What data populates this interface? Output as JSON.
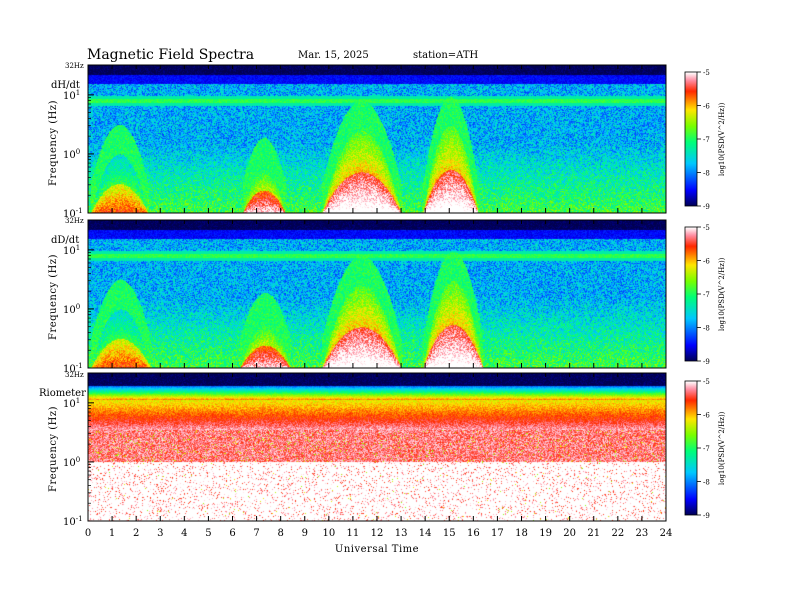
{
  "chart_data": {
    "type": "heatmap",
    "title": "Magnetic  Field  Spectra",
    "date": "Mar. 15, 2025",
    "station": "station=ATH",
    "xlabel": "Universal Time",
    "x_ticks": [
      "0",
      "1",
      "2",
      "3",
      "4",
      "5",
      "6",
      "7",
      "8",
      "9",
      "10",
      "11",
      "12",
      "13",
      "14",
      "15",
      "16",
      "17",
      "18",
      "19",
      "20",
      "21",
      "22",
      "23",
      "24"
    ],
    "xlim": [
      0,
      24
    ],
    "colorbar": {
      "range": [
        -9,
        -5
      ],
      "ticks": [
        "-5",
        "-6",
        "-7",
        "-8",
        "-9"
      ],
      "label": "log10(PSD(V^2/Hz))"
    },
    "panels": [
      {
        "label": "dH/dt",
        "ylabel": "Frequency  (Hz)",
        "top_label": "32Hz",
        "y_ticks": [
          "10^1",
          "10^0",
          "10^-1"
        ],
        "ylim": [
          0.1,
          32
        ],
        "y_scale": "log",
        "background_level": -7.8,
        "line_freq": 8.0,
        "events": [
          {
            "start": 0.1,
            "end": 2.5,
            "fmax": 1.0,
            "peak": -6.2
          },
          {
            "start": 6.4,
            "end": 8.2,
            "fmax": 0.6,
            "peak": -5.6
          },
          {
            "start": 9.7,
            "end": 13.0,
            "fmax": 2.5,
            "peak": -5.3
          },
          {
            "start": 13.9,
            "end": 16.2,
            "fmax": 3.0,
            "peak": -5.3
          }
        ]
      },
      {
        "label": "dD/dt",
        "ylabel": "Frequency  (Hz)",
        "top_label": "32Hz",
        "y_ticks": [
          "10^1",
          "10^0",
          "10^-1"
        ],
        "ylim": [
          0.1,
          32
        ],
        "y_scale": "log",
        "background_level": -7.8,
        "line_freq": 8.0,
        "events": [
          {
            "start": 0.1,
            "end": 2.6,
            "fmax": 1.0,
            "peak": -6.2
          },
          {
            "start": 6.3,
            "end": 8.4,
            "fmax": 0.6,
            "peak": -5.6
          },
          {
            "start": 9.7,
            "end": 13.0,
            "fmax": 2.5,
            "peak": -5.3
          },
          {
            "start": 13.9,
            "end": 16.4,
            "fmax": 3.0,
            "peak": -5.3
          }
        ]
      },
      {
        "label": "Riometer",
        "ylabel": "Frequency  (Hz)",
        "top_label": "32Hz",
        "y_ticks": [
          "10^1",
          "10^0",
          "10^-1"
        ],
        "ylim": [
          0.1,
          32
        ],
        "y_scale": "log",
        "background_level": -5.2,
        "line_freq": null,
        "events": []
      }
    ]
  }
}
